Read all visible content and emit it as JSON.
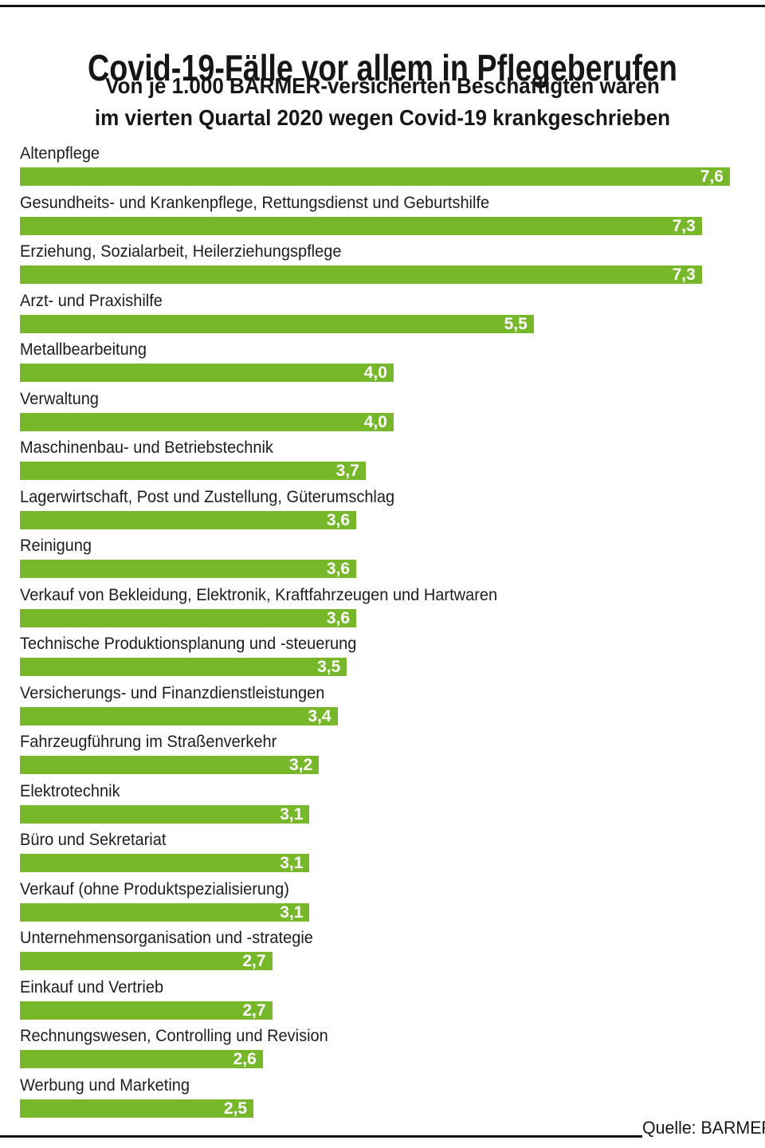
{
  "page": {
    "title": "Covid-19-Fälle vor allem in Pflegeberufen",
    "subtitle_line1": "Von je 1.000 BARMER-versicherten Beschäftigten waren",
    "subtitle_line2": "im vierten Quartal 2020 wegen Covid-19 krankgeschrieben",
    "source_label": "Quelle: BARMER"
  },
  "colors": {
    "bar": "#76b82a",
    "value_text": "#ffffff",
    "label_text": "#1d1d1b",
    "title_text": "#161615",
    "rule": "#131313"
  },
  "chart_data": {
    "type": "bar",
    "orientation": "horizontal",
    "title": "Covid-19-Fälle vor allem in Pflegeberufen",
    "subtitle": "Von je 1.000 BARMER-versicherten Beschäftigten waren im vierten Quartal 2020 wegen Covid-19 krankgeschrieben",
    "source": "Quelle: BARMER",
    "xlim": [
      0,
      7.6
    ],
    "grid": false,
    "legend": false,
    "categories": [
      "Altenpflege",
      "Gesundheits- und Krankenpflege, Rettungsdienst und Geburtshilfe",
      "Erziehung, Sozialarbeit, Heilerziehungspflege",
      "Arzt- und Praxishilfe",
      "Metallbearbeitung",
      "Verwaltung",
      "Maschinenbau- und Betriebstechnik",
      "Lagerwirtschaft, Post und Zustellung, Güterumschlag",
      "Reinigung",
      "Verkauf von Bekleidung, Elektronik, Kraftfahrzeugen und Hartwaren",
      "Technische Produktionsplanung und -steuerung",
      "Versicherungs- und Finanzdienstleistungen",
      "Fahrzeugführung im Straßenverkehr",
      "Elektrotechnik",
      "Büro und Sekretariat",
      "Verkauf (ohne Produktspezialisierung)",
      "Unternehmensorganisation und -strategie",
      "Einkauf und Vertrieb",
      "Rechnungswesen, Controlling und Revision",
      "Werbung und Marketing"
    ],
    "values": [
      7.6,
      7.3,
      7.3,
      5.5,
      4.0,
      4.0,
      3.7,
      3.6,
      3.6,
      3.6,
      3.5,
      3.4,
      3.2,
      3.1,
      3.1,
      3.1,
      2.7,
      2.7,
      2.6,
      2.5
    ],
    "value_labels": [
      "7,6",
      "7,3",
      "7,3",
      "5,5",
      "4,0",
      "4,0",
      "3,7",
      "3,6",
      "3,6",
      "3,6",
      "3,5",
      "3,4",
      "3,2",
      "3,1",
      "3,1",
      "3,1",
      "2,7",
      "2,7",
      "2,6",
      "2,5"
    ]
  }
}
